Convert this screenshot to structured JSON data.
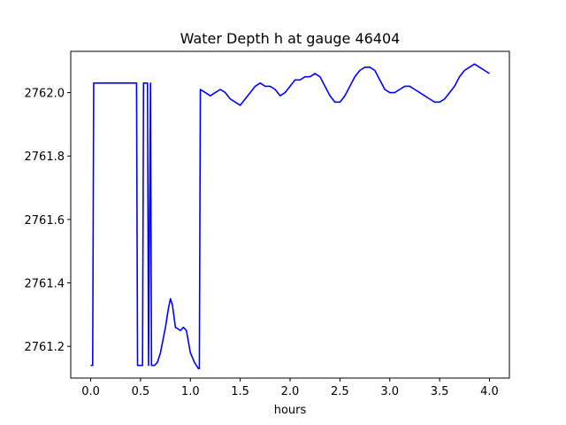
{
  "chart_data": {
    "type": "line",
    "title": "Water Depth h at gauge 46404",
    "xlabel": "hours",
    "ylabel": "",
    "xlim": [
      -0.2,
      4.2
    ],
    "ylim": [
      2761.1,
      2762.13
    ],
    "grid": false,
    "x_ticks": [
      0.0,
      0.5,
      1.0,
      1.5,
      2.0,
      2.5,
      3.0,
      3.5,
      4.0
    ],
    "x_tick_labels": [
      "0.0",
      "0.5",
      "1.0",
      "1.5",
      "2.0",
      "2.5",
      "3.0",
      "3.5",
      "4.0"
    ],
    "y_ticks": [
      2761.2,
      2761.4,
      2761.6,
      2761.8,
      2762.0
    ],
    "y_tick_labels": [
      "2761.2",
      "2761.4",
      "2761.6",
      "2761.8",
      "2762.0"
    ],
    "series": [
      {
        "color": "#0000ff",
        "x": [
          0.0,
          0.02,
          0.03,
          0.46,
          0.47,
          0.52,
          0.53,
          0.57,
          0.58,
          0.6,
          0.61,
          0.63,
          0.64,
          0.67,
          0.7,
          0.75,
          0.78,
          0.8,
          0.82,
          0.85,
          0.9,
          0.93,
          0.96,
          1.0,
          1.04,
          1.08,
          1.09,
          1.1,
          1.15,
          1.2,
          1.25,
          1.3,
          1.35,
          1.4,
          1.45,
          1.5,
          1.55,
          1.6,
          1.65,
          1.7,
          1.75,
          1.8,
          1.85,
          1.9,
          1.95,
          2.0,
          2.05,
          2.1,
          2.15,
          2.2,
          2.25,
          2.3,
          2.35,
          2.4,
          2.45,
          2.5,
          2.55,
          2.6,
          2.65,
          2.7,
          2.75,
          2.8,
          2.85,
          2.9,
          2.95,
          3.0,
          3.05,
          3.1,
          3.15,
          3.2,
          3.25,
          3.3,
          3.35,
          3.4,
          3.45,
          3.5,
          3.55,
          3.6,
          3.65,
          3.7,
          3.75,
          3.8,
          3.85,
          3.9,
          3.95,
          4.0
        ],
        "y": [
          2761.14,
          2761.14,
          2762.03,
          2762.03,
          2761.14,
          2761.14,
          2762.03,
          2762.03,
          2761.14,
          2762.03,
          2761.14,
          2761.14,
          2761.14,
          2761.15,
          2761.18,
          2761.26,
          2761.32,
          2761.35,
          2761.33,
          2761.26,
          2761.25,
          2761.26,
          2761.25,
          2761.18,
          2761.15,
          2761.13,
          2761.13,
          2762.01,
          2762.0,
          2761.99,
          2762.0,
          2762.01,
          2762.0,
          2761.98,
          2761.97,
          2761.96,
          2761.98,
          2762.0,
          2762.02,
          2762.03,
          2762.02,
          2762.02,
          2762.01,
          2761.99,
          2762.0,
          2762.02,
          2762.04,
          2762.04,
          2762.05,
          2762.05,
          2762.06,
          2762.05,
          2762.02,
          2761.99,
          2761.97,
          2761.97,
          2761.99,
          2762.02,
          2762.05,
          2762.07,
          2762.08,
          2762.08,
          2762.07,
          2762.04,
          2762.01,
          2762.0,
          2762.0,
          2762.01,
          2762.02,
          2762.02,
          2762.01,
          2762.0,
          2761.99,
          2761.98,
          2761.97,
          2761.97,
          2761.98,
          2762.0,
          2762.02,
          2762.05,
          2762.07,
          2762.08,
          2762.09,
          2762.08,
          2762.07,
          2762.06
        ]
      }
    ]
  }
}
